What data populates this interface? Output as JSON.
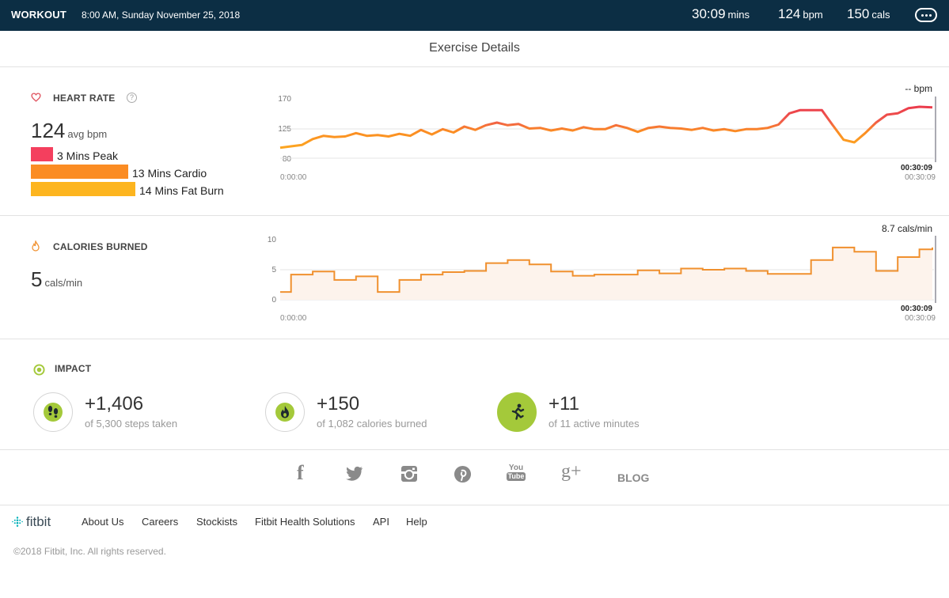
{
  "topbar": {
    "title": "WORKOUT",
    "datetime": "8:00 AM, Sunday November 25, 2018",
    "duration": "30:09",
    "duration_unit": "mins",
    "bpm": "124",
    "bpm_unit": "bpm",
    "cals": "150",
    "cals_unit": "cals",
    "more_icon": "ellipsis-icon"
  },
  "page_title": "Exercise Details",
  "heart_rate": {
    "title": "HEART RATE",
    "icon": "heart-icon",
    "help": "?",
    "avg_value": "124",
    "avg_unit": "avg bpm",
    "zones": [
      {
        "label": "3 Mins Peak",
        "minutes": 3,
        "color": "#f43f5e"
      },
      {
        "label": "13 Mins Cardio",
        "minutes": 13,
        "color": "#fb8c23"
      },
      {
        "label": "14 Mins Fat Burn",
        "minutes": 14,
        "color": "#fdb51f"
      }
    ]
  },
  "calories": {
    "title": "CALORIES BURNED",
    "icon": "flame-icon",
    "value": "5",
    "unit": "cals/min"
  },
  "chart_data": [
    {
      "type": "line",
      "title": "",
      "yticks": [
        "170",
        "125",
        "80"
      ],
      "ylim": [
        80,
        170
      ],
      "x_start_label": "0:00:00",
      "x_end_label": "00:30:09",
      "cursor_time": "00:30:09",
      "readout": "-- bpm",
      "grid": true,
      "x_minutes": [
        0,
        1,
        1.5,
        2,
        2.5,
        3,
        3.5,
        4,
        4.5,
        5,
        5.5,
        6,
        6.5,
        7,
        7.5,
        8,
        8.5,
        9,
        9.5,
        10,
        10.5,
        11,
        11.5,
        12,
        12.5,
        13,
        13.5,
        14,
        14.5,
        15,
        15.5,
        16,
        16.5,
        17,
        17.5,
        18,
        18.5,
        19,
        19.5,
        20,
        20.5,
        21,
        21.5,
        22,
        22.5,
        23,
        23.5,
        24,
        24.5,
        25,
        25.5,
        26,
        26.5,
        27,
        27.5,
        28,
        28.5,
        29,
        29.5,
        30.1
      ],
      "values": [
        96,
        100,
        109,
        114,
        112,
        113,
        118,
        114,
        115,
        113,
        117,
        114,
        123,
        116,
        124,
        119,
        128,
        123,
        130,
        134,
        130,
        132,
        125,
        126,
        122,
        125,
        122,
        127,
        124,
        124,
        130,
        126,
        120,
        126,
        128,
        126,
        125,
        123,
        126,
        122,
        124,
        121,
        124,
        124,
        126,
        131,
        148,
        153,
        153,
        153,
        130,
        108,
        104,
        118,
        134,
        146,
        148,
        156,
        158,
        157
      ]
    },
    {
      "type": "area",
      "title": "",
      "yticks": [
        "10",
        "5",
        "0"
      ],
      "ylim": [
        0,
        10
      ],
      "x_start_label": "0:00:00",
      "x_end_label": "00:30:09",
      "cursor_time": "00:30:09",
      "readout": "8.7 cals/min",
      "grid": true,
      "x_minutes": [
        0,
        0.5,
        1.5,
        2.5,
        3.5,
        4.5,
        5.5,
        6.5,
        7.5,
        8.5,
        9.5,
        10.5,
        11.5,
        12.5,
        13.5,
        14.5,
        15.5,
        16.5,
        17.5,
        18.5,
        19.5,
        20.5,
        21.5,
        22.5,
        23.5,
        24.5,
        25.5,
        26.5,
        27.5,
        28.5,
        29.5,
        30.1
      ],
      "values": [
        1.3,
        4.2,
        4.7,
        3.3,
        3.9,
        1.3,
        3.3,
        4.2,
        4.6,
        4.8,
        6.1,
        6.6,
        5.9,
        4.7,
        4.0,
        4.2,
        4.2,
        4.9,
        4.4,
        5.2,
        5.0,
        5.2,
        4.8,
        4.3,
        4.3,
        6.6,
        8.7,
        8.0,
        4.8,
        7.1,
        8.4,
        8.7
      ]
    }
  ],
  "impact": {
    "title": "IMPACT",
    "icon": "target-icon",
    "items": [
      {
        "value": "+1,406",
        "subtitle": "of 5,300 steps taken",
        "icon": "footprints-icon"
      },
      {
        "value": "+150",
        "subtitle": "of 1,082 calories burned",
        "icon": "flame-icon"
      },
      {
        "value": "+11",
        "subtitle": "of 11 active minutes",
        "icon": "running-person-icon"
      }
    ]
  },
  "social": {
    "facebook": "f",
    "twitter": "twitter-icon",
    "instagram": "instagram-icon",
    "pinterest": "pinterest-icon",
    "youtube_top": "You",
    "youtube_bottom": "Tube",
    "googleplus": "g+",
    "blog": "BLOG"
  },
  "footer": {
    "brand": "fitbit",
    "links": [
      "About Us",
      "Careers",
      "Stockists",
      "Fitbit Health Solutions",
      "API",
      "Help"
    ],
    "copyright": "©2018 Fitbit, Inc. All rights reserved."
  },
  "colors": {
    "topbar": "#0c2e44",
    "peak": "#f43f5e",
    "cardio": "#fb8c23",
    "fat_burn": "#fdb51f",
    "calorie_line": "#f0902e",
    "calorie_fill": "#fdf3ec",
    "active": "#a4c93a"
  }
}
